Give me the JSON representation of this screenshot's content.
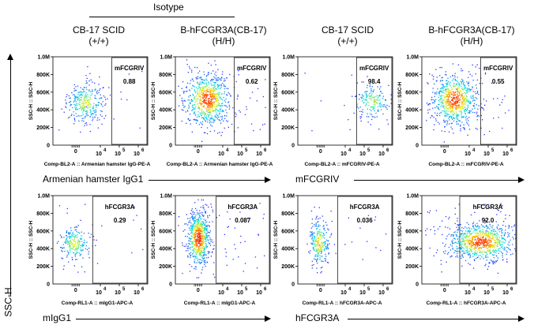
{
  "header": {
    "isotype_label": "Isotype",
    "columns": [
      {
        "line1": "CB-17 SCID",
        "line2": "(+/+)"
      },
      {
        "line1": "B-hFCGR3A(CB-17)",
        "line2": "(H/H)"
      },
      {
        "line1": "CB-17 SCID",
        "line2": "(+/+)"
      },
      {
        "line1": "B-hFCGR3A(CB-17)",
        "line2": "(H/H)"
      }
    ]
  },
  "y_axis_global_label": "SSC-H",
  "row_labels": {
    "row1_left": "Armenian hamster IgG1",
    "row1_right": "mFCGRIV",
    "row2_left": "mIgG1",
    "row2_right": "hFCGR3A"
  },
  "colors": {
    "gate": "#222222",
    "density_low": "#2a2aff",
    "density_mid": "#00e0e0",
    "density_high1": "#f0f000",
    "density_high2": "#ff2a00"
  },
  "chart_data": [
    {
      "type": "scatter",
      "gate_name": "mFCGRIV",
      "gate_value": "0.88",
      "xlabel": "Comp-BL2-A :: Armenian hamster IgG-PE-A",
      "ylabel": "SSC-H :: SSC-H",
      "y_ticks": [
        "1.0M",
        "800K",
        "600K",
        "400K",
        "200K",
        "0"
      ],
      "x_ticks": [
        "0",
        "10",
        "4",
        "10",
        "5",
        "10",
        "6"
      ],
      "cluster": {
        "cx": 0.34,
        "cy": 0.52,
        "sx": 0.1,
        "sy": 0.11,
        "n": 300,
        "hot": 0.3
      }
    },
    {
      "type": "scatter",
      "gate_name": "mFCGRIV",
      "gate_value": "0.62",
      "xlabel": "Comp-BL2-A :: Armenian hamster IgG-PE-A",
      "ylabel": "SSC-H :: SSC-H",
      "y_ticks": [
        "1.0M",
        "800K",
        "600K",
        "400K",
        "200K",
        "0"
      ],
      "x_ticks": [
        "0",
        "10",
        "4",
        "10",
        "5",
        "10",
        "6"
      ],
      "cluster": {
        "cx": 0.33,
        "cy": 0.48,
        "sx": 0.12,
        "sy": 0.15,
        "n": 700,
        "hot": 0.9
      }
    },
    {
      "type": "scatter",
      "gate_name": "mFCGRIV",
      "gate_value": "98.4",
      "xlabel": "Comp-BL2-A :: mFCGRIV-PE-A",
      "ylabel": "SSC-H :: SSC-H",
      "y_ticks": [
        "1.0M",
        "800K",
        "600K",
        "400K",
        "200K",
        "0"
      ],
      "x_ticks": [
        "0",
        "10",
        "4",
        "10",
        "5",
        "10",
        "6"
      ],
      "cluster": {
        "cx": 0.78,
        "cy": 0.5,
        "sx": 0.09,
        "sy": 0.1,
        "n": 180,
        "hot": 0.2
      }
    },
    {
      "type": "scatter",
      "gate_name": "mFCGRIV",
      "gate_value": "0.55",
      "xlabel": "Comp-BL2-A :: mFCGRIV-PE-A",
      "ylabel": "SSC-H :: SSC-H",
      "y_ticks": [
        "1.0M",
        "800K",
        "600K",
        "400K",
        "200K",
        "0"
      ],
      "x_ticks": [
        "0",
        "10",
        "4",
        "10",
        "5",
        "10",
        "6"
      ],
      "cluster": {
        "cx": 0.34,
        "cy": 0.48,
        "sx": 0.12,
        "sy": 0.15,
        "n": 700,
        "hot": 0.9
      }
    },
    {
      "type": "scatter",
      "gate_name": "hFCGR3A",
      "gate_value": "0.29",
      "xlabel": "Comp-RL1-A :: mIgG1-APC-A",
      "ylabel": "SSC-H :: SSC-H",
      "y_ticks": [
        "1.0M",
        "800K",
        "600K",
        "400K",
        "200K",
        "0"
      ],
      "x_ticks": [
        "0",
        "10",
        "4",
        "10",
        "5",
        "10",
        "6"
      ],
      "cluster": {
        "cx": 0.22,
        "cy": 0.54,
        "sx": 0.08,
        "sy": 0.1,
        "n": 220,
        "hot": 0.3
      }
    },
    {
      "type": "scatter",
      "gate_name": "hFCGR3A",
      "gate_value": "0.087",
      "xlabel": "Comp-RL1-A :: mIgG1-APC-A",
      "ylabel": "SSC-H :: SSC-H",
      "y_ticks": [
        "1.0M",
        "800K",
        "600K",
        "400K",
        "200K",
        "0"
      ],
      "x_ticks": [
        "0",
        "10",
        "4",
        "10",
        "5",
        "10",
        "6"
      ],
      "cluster": {
        "cx": 0.24,
        "cy": 0.48,
        "sx": 0.06,
        "sy": 0.16,
        "n": 650,
        "hot": 1.0
      }
    },
    {
      "type": "scatter",
      "gate_name": "hFCGR3A",
      "gate_value": "0.036",
      "xlabel": "Comp-RL1-A :: hFCGR3A-APC-A",
      "ylabel": "SSC-H :: SSC-H",
      "y_ticks": [
        "1.0M",
        "800K",
        "600K",
        "400K",
        "200K",
        "0"
      ],
      "x_ticks": [
        "0",
        "10",
        "4",
        "10",
        "5",
        "10",
        "6"
      ],
      "cluster": {
        "cx": 0.22,
        "cy": 0.53,
        "sx": 0.05,
        "sy": 0.13,
        "n": 260,
        "hot": 0.5
      }
    },
    {
      "type": "scatter",
      "gate_name": "hFCGR3A",
      "gate_value": "92.0",
      "xlabel": "Comp-RL1-A :: hFCGR3A-APC-A",
      "ylabel": "SSC-H :: SSC-H",
      "y_ticks": [
        "1.0M",
        "800K",
        "600K",
        "400K",
        "200K",
        "0"
      ],
      "x_ticks": [
        "0",
        "10",
        "4",
        "10",
        "5",
        "10",
        "6"
      ],
      "cluster": {
        "cx": 0.62,
        "cy": 0.52,
        "sx": 0.18,
        "sy": 0.11,
        "n": 800,
        "hot": 0.9
      }
    }
  ]
}
